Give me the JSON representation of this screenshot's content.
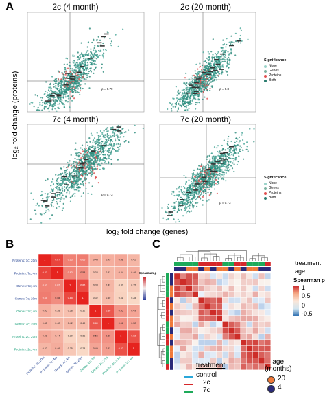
{
  "panel_a": {
    "letter": "A",
    "ylabel": "log₂ fold change (proteins)",
    "xlabel": "log₂ fold change (genes)",
    "legend": {
      "title": "Significance",
      "items": [
        {
          "label": "None",
          "color": "#9bd3c9"
        },
        {
          "label": "Genes",
          "color": "#7bb2a0"
        },
        {
          "label": "Proteins",
          "color": "#e05050"
        },
        {
          "label": "Both",
          "color": "#2a7c6f"
        }
      ]
    },
    "plots": [
      {
        "title": "2c (4 month)",
        "rho": "ρ = 0.79"
      },
      {
        "title": "2c (20 month)",
        "rho": "ρ = 0.8"
      },
      {
        "title": "7c (4 month)",
        "rho": "ρ = 0.73"
      },
      {
        "title": "7c (20 month)",
        "rho": "ρ = 0.73"
      }
    ]
  },
  "panel_b": {
    "letter": "B",
    "colorbar_title": "Spearman ρ",
    "labels": [
      "Proteins: 7c; 20m",
      "Proteins: 7c; 4m",
      "Genes: 7c; 4m",
      "Genes: 7c; 20m",
      "Genes: 2c; 4m",
      "Genes: 2c; 20m",
      "Proteins: 2c; 20m",
      "Proteins: 2c; 4m"
    ],
    "label_colors": [
      "#1a3a8c",
      "#1a3a8c",
      "#1a3a8c",
      "#1a3a8c",
      "#1aa07a",
      "#1aa07a",
      "#1aa07a",
      "#1aa07a"
    ],
    "matrix": [
      [
        1,
        0.87,
        0.63,
        0.65,
        0.45,
        0.45,
        0.48,
        0.42
      ],
      [
        0.87,
        1,
        0.62,
        0.58,
        0.38,
        0.42,
        0.44,
        0.46
      ],
      [
        0.63,
        0.62,
        1,
        0.85,
        0.38,
        0.42,
        0.3,
        0.35
      ],
      [
        0.65,
        0.58,
        0.85,
        1,
        0.32,
        0.4,
        0.31,
        0.28
      ],
      [
        0.45,
        0.38,
        0.38,
        0.32,
        1,
        0.8,
        0.55,
        0.49
      ],
      [
        0.45,
        0.42,
        0.42,
        0.4,
        0.8,
        1,
        0.56,
        0.52
      ],
      [
        0.48,
        0.44,
        0.3,
        0.31,
        0.55,
        0.56,
        1,
        0.82
      ],
      [
        0.42,
        0.46,
        0.35,
        0.28,
        0.49,
        0.52,
        0.82,
        1
      ]
    ]
  },
  "panel_c": {
    "letter": "C",
    "treatment_label": "treatment",
    "age_label": "age",
    "colorbar_title": "Spearman ρ",
    "colorbar_ticks": [
      "1",
      "0.5",
      "0",
      "-0.5"
    ],
    "legend": {
      "treatment_title": "treatment",
      "treatments": [
        {
          "label": "control",
          "color": "#2aa7d9"
        },
        {
          "label": "2c",
          "color": "#d6272a"
        },
        {
          "label": "7c",
          "color": "#1eaa5a"
        }
      ],
      "age_title": "age\n(months)",
      "ages": [
        {
          "label": "20",
          "color": "#f07a3a"
        },
        {
          "label": "4",
          "color": "#2a2a7a"
        }
      ]
    }
  }
}
